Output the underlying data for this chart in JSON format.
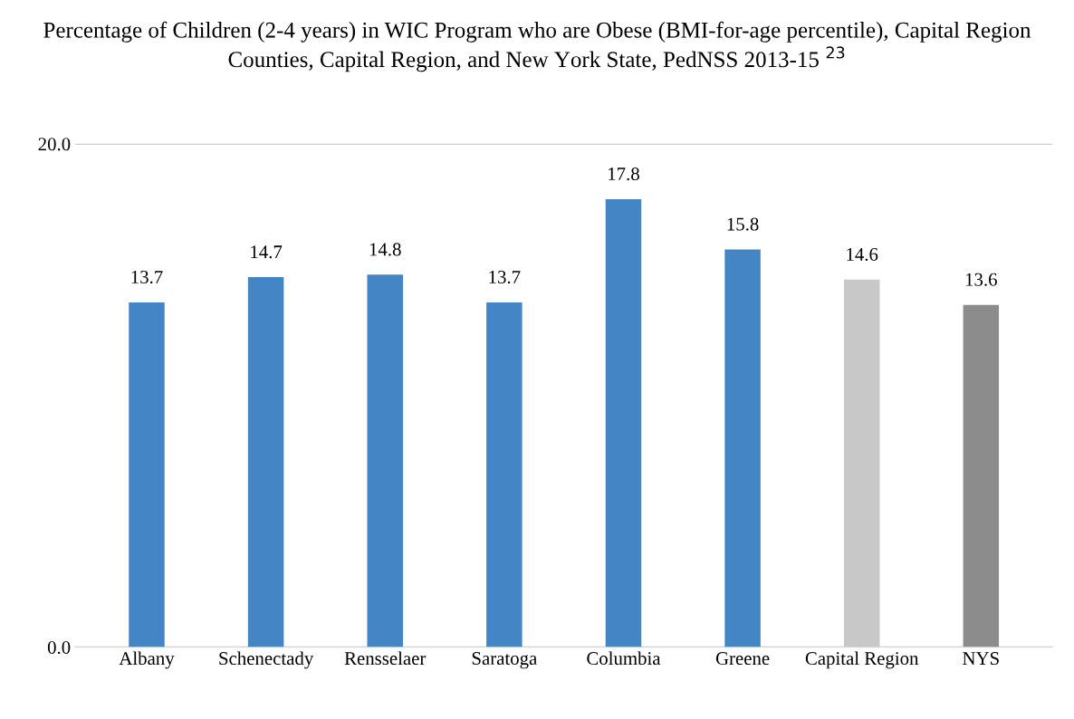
{
  "chart_data": {
    "type": "bar",
    "title": "Percentage of Children (2-4 years) in WIC Program who are Obese (BMI-for-age percentile), Capital Region Counties, Capital Region, and New York State, PedNSS 2013-15 $^{23}$",
    "categories": [
      "Albany",
      "Schenectady",
      "Rensselaer",
      "Saratoga",
      "Columbia",
      "Greene",
      "Capital Region",
      "NYS"
    ],
    "values": [
      13.7,
      14.7,
      14.8,
      13.7,
      17.8,
      15.8,
      14.6,
      13.6
    ],
    "colors": [
      "#4485c6",
      "#4485c6",
      "#4485c6",
      "#4485c6",
      "#4485c6",
      "#4485c6",
      "#c8c8c8",
      "#8c8c8c"
    ],
    "ylim": [
      0,
      20
    ],
    "yticks": [
      {
        "value": 0,
        "label": "0.0"
      },
      {
        "value": 20,
        "label": "20.0"
      }
    ],
    "grid": "y",
    "data_labels": true
  }
}
